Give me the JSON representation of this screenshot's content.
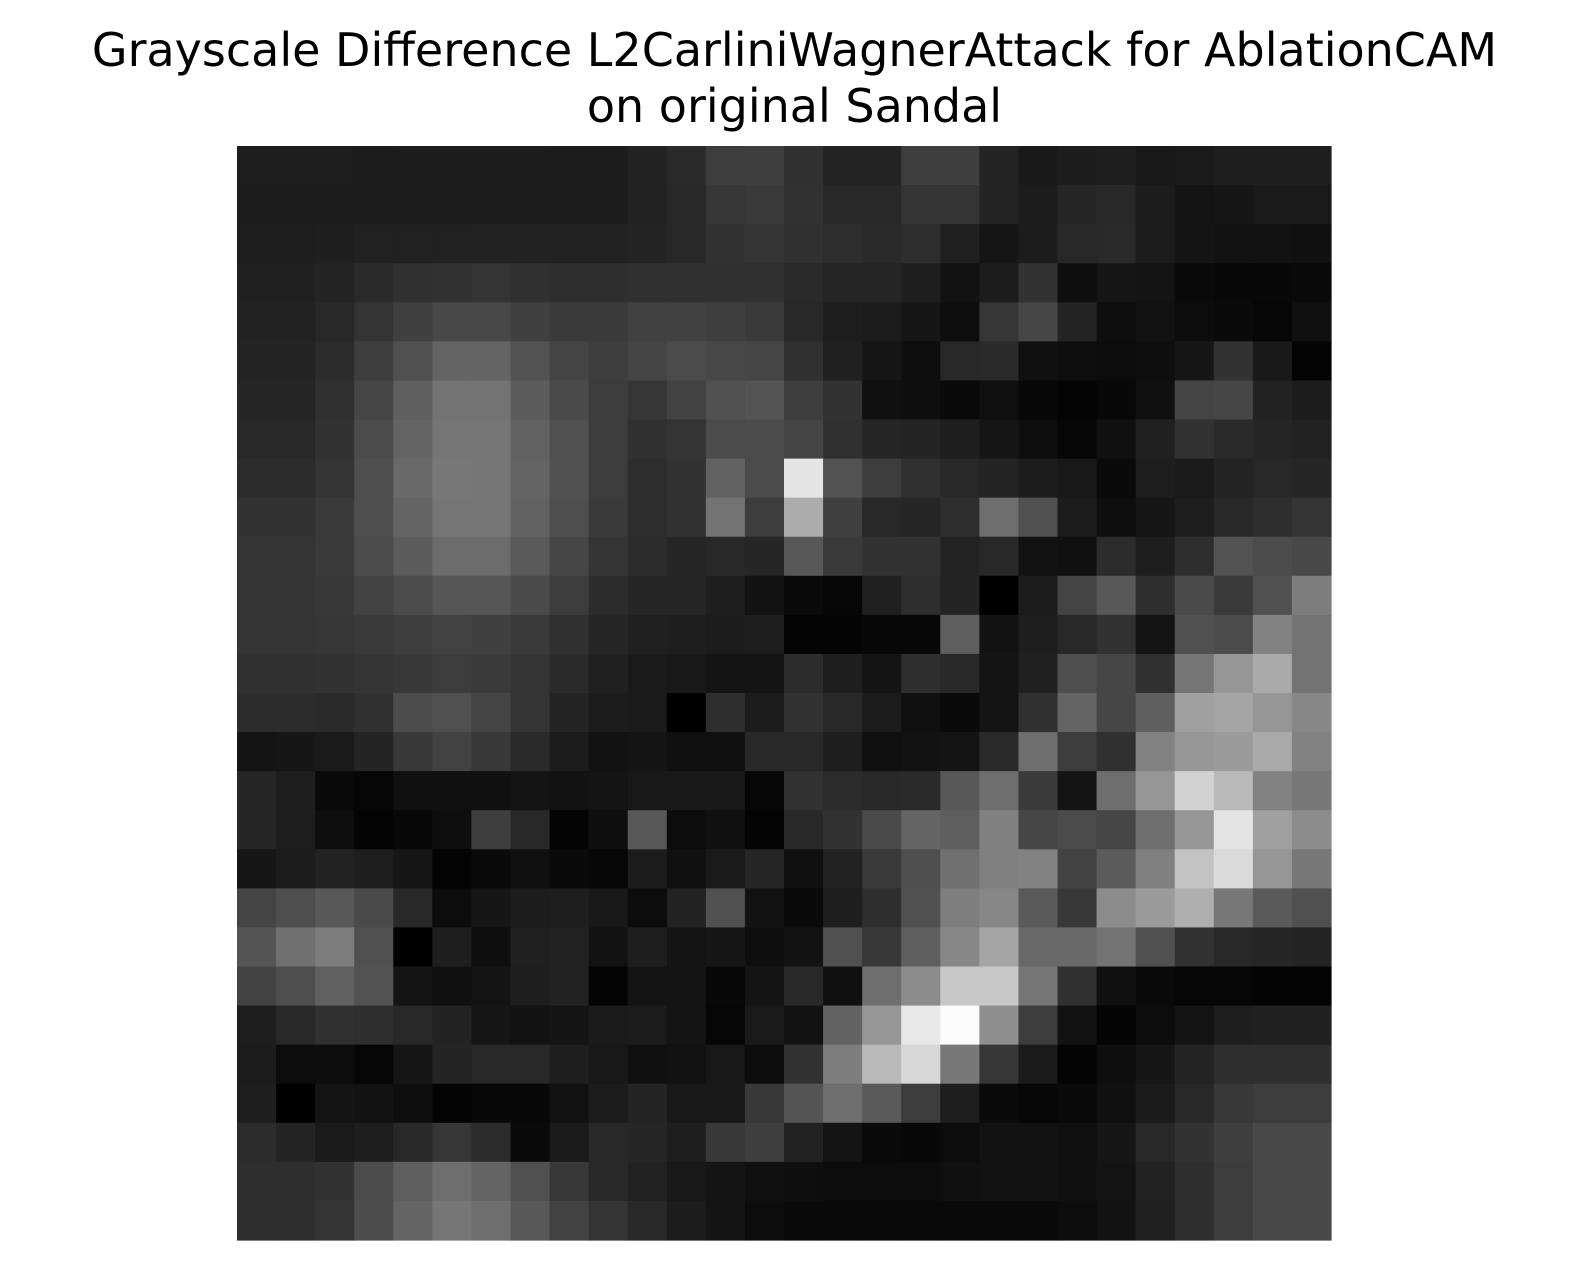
{
  "chart_data": {
    "type": "heatmap",
    "title_lines": [
      "Grayscale Difference L2CarliniWagnerAttack for AblationCAM",
      "on original Sandal"
    ],
    "colormap": "gray",
    "axes_visible": false,
    "rows": 28,
    "cols": 28,
    "values": [
      [
        30,
        30,
        30,
        29,
        28,
        28,
        28,
        28,
        29,
        29,
        34,
        42,
        60,
        62,
        48,
        35,
        35,
        62,
        62,
        36,
        25,
        28,
        30,
        24,
        26,
        30,
        30,
        30
      ],
      [
        29,
        29,
        29,
        29,
        28,
        28,
        28,
        28,
        29,
        29,
        34,
        40,
        55,
        58,
        50,
        40,
        40,
        52,
        52,
        36,
        28,
        38,
        40,
        28,
        20,
        22,
        26,
        26
      ],
      [
        30,
        30,
        31,
        33,
        33,
        33,
        34,
        34,
        34,
        34,
        36,
        40,
        50,
        52,
        48,
        45,
        42,
        45,
        32,
        22,
        28,
        40,
        42,
        28,
        20,
        18,
        18,
        16
      ],
      [
        32,
        32,
        36,
        42,
        48,
        50,
        52,
        48,
        46,
        46,
        48,
        48,
        48,
        48,
        42,
        38,
        38,
        30,
        18,
        28,
        50,
        14,
        22,
        20,
        10,
        8,
        8,
        10
      ],
      [
        34,
        34,
        40,
        52,
        64,
        72,
        72,
        64,
        58,
        58,
        65,
        65,
        62,
        58,
        40,
        30,
        28,
        22,
        14,
        54,
        70,
        36,
        14,
        18,
        12,
        10,
        6,
        16
      ],
      [
        36,
        36,
        44,
        62,
        80,
        100,
        100,
        82,
        68,
        62,
        68,
        75,
        72,
        70,
        48,
        32,
        22,
        14,
        40,
        42,
        16,
        14,
        12,
        14,
        22,
        50,
        25,
        4
      ],
      [
        38,
        38,
        48,
        70,
        95,
        115,
        115,
        92,
        74,
        60,
        54,
        66,
        80,
        84,
        62,
        50,
        16,
        14,
        10,
        16,
        8,
        4,
        8,
        16,
        68,
        70,
        34,
        28
      ],
      [
        40,
        40,
        50,
        75,
        100,
        118,
        118,
        98,
        80,
        60,
        48,
        52,
        75,
        75,
        68,
        48,
        38,
        36,
        30,
        22,
        14,
        6,
        16,
        32,
        50,
        42,
        38,
        34
      ],
      [
        44,
        44,
        52,
        78,
        105,
        120,
        118,
        100,
        80,
        60,
        45,
        50,
        98,
        75,
        228,
        82,
        60,
        48,
        40,
        36,
        28,
        24,
        10,
        30,
        26,
        36,
        40,
        38
      ],
      [
        50,
        50,
        58,
        78,
        100,
        118,
        118,
        98,
        78,
        58,
        45,
        50,
        115,
        60,
        172,
        64,
        40,
        38,
        46,
        110,
        80,
        28,
        14,
        22,
        30,
        40,
        46,
        52
      ],
      [
        52,
        52,
        58,
        76,
        92,
        108,
        108,
        90,
        70,
        52,
        44,
        38,
        40,
        38,
        88,
        58,
        50,
        50,
        35,
        40,
        18,
        16,
        44,
        30,
        46,
        82,
        76,
        72
      ],
      [
        52,
        52,
        56,
        66,
        76,
        86,
        86,
        74,
        60,
        44,
        38,
        38,
        30,
        18,
        10,
        6,
        32,
        46,
        36,
        0,
        28,
        68,
        88,
        46,
        74,
        58,
        80,
        125
      ],
      [
        52,
        52,
        54,
        58,
        62,
        66,
        64,
        58,
        48,
        38,
        32,
        30,
        28,
        30,
        4,
        4,
        8,
        8,
        94,
        18,
        30,
        40,
        50,
        20,
        80,
        75,
        130,
        115
      ],
      [
        48,
        48,
        50,
        52,
        56,
        60,
        58,
        52,
        42,
        32,
        26,
        24,
        20,
        20,
        44,
        30,
        20,
        46,
        40,
        20,
        32,
        78,
        70,
        48,
        118,
        150,
        170,
        115
      ],
      [
        44,
        44,
        42,
        48,
        76,
        80,
        68,
        52,
        36,
        28,
        26,
        0,
        46,
        28,
        50,
        40,
        28,
        16,
        10,
        20,
        48,
        100,
        70,
        95,
        160,
        165,
        150,
        135
      ],
      [
        20,
        22,
        26,
        36,
        56,
        66,
        56,
        42,
        28,
        18,
        20,
        16,
        16,
        40,
        40,
        30,
        16,
        18,
        20,
        42,
        110,
        60,
        48,
        130,
        150,
        155,
        170,
        130
      ],
      [
        38,
        30,
        10,
        6,
        16,
        16,
        16,
        20,
        18,
        20,
        24,
        24,
        24,
        6,
        50,
        44,
        40,
        42,
        88,
        110,
        58,
        20,
        110,
        150,
        210,
        185,
        130,
        120
      ],
      [
        38,
        30,
        14,
        4,
        8,
        14,
        62,
        40,
        4,
        14,
        88,
        12,
        16,
        4,
        40,
        50,
        74,
        100,
        94,
        128,
        70,
        75,
        70,
        110,
        150,
        228,
        160,
        140
      ],
      [
        22,
        28,
        34,
        30,
        22,
        4,
        10,
        16,
        10,
        6,
        28,
        16,
        26,
        38,
        16,
        34,
        58,
        78,
        112,
        128,
        130,
        66,
        92,
        128,
        195,
        218,
        150,
        120
      ],
      [
        68,
        78,
        88,
        74,
        40,
        12,
        22,
        28,
        30,
        24,
        12,
        34,
        80,
        18,
        10,
        30,
        46,
        80,
        126,
        135,
        90,
        56,
        140,
        155,
        175,
        120,
        90,
        80
      ],
      [
        85,
        112,
        125,
        80,
        0,
        30,
        14,
        32,
        34,
        18,
        30,
        20,
        22,
        14,
        18,
        80,
        56,
        95,
        135,
        165,
        105,
        105,
        115,
        80,
        50,
        40,
        38,
        36
      ],
      [
        66,
        78,
        96,
        82,
        20,
        16,
        20,
        30,
        34,
        4,
        20,
        20,
        8,
        20,
        40,
        16,
        110,
        140,
        200,
        200,
        118,
        48,
        16,
        10,
        6,
        6,
        4,
        4
      ],
      [
        30,
        40,
        48,
        46,
        40,
        34,
        22,
        18,
        20,
        26,
        28,
        20,
        6,
        26,
        18,
        98,
        150,
        232,
        252,
        142,
        60,
        18,
        4,
        12,
        20,
        30,
        32,
        32
      ],
      [
        28,
        12,
        12,
        6,
        22,
        36,
        40,
        40,
        30,
        24,
        16,
        18,
        24,
        12,
        50,
        125,
        185,
        215,
        120,
        54,
        26,
        4,
        14,
        22,
        36,
        46,
        46,
        46
      ],
      [
        30,
        0,
        20,
        18,
        14,
        4,
        8,
        8,
        18,
        28,
        36,
        24,
        24,
        56,
        84,
        110,
        90,
        60,
        30,
        10,
        6,
        10,
        16,
        26,
        40,
        56,
        60,
        60
      ],
      [
        44,
        36,
        26,
        30,
        40,
        54,
        44,
        10,
        26,
        40,
        38,
        30,
        56,
        62,
        34,
        20,
        10,
        8,
        12,
        18,
        18,
        16,
        22,
        40,
        50,
        62,
        72,
        72
      ],
      [
        46,
        46,
        50,
        75,
        95,
        110,
        100,
        80,
        56,
        40,
        34,
        24,
        20,
        16,
        14,
        12,
        12,
        12,
        16,
        18,
        18,
        16,
        20,
        34,
        46,
        60,
        72,
        72
      ],
      [
        46,
        46,
        52,
        76,
        100,
        118,
        110,
        88,
        66,
        52,
        40,
        28,
        20,
        12,
        10,
        10,
        10,
        10,
        10,
        10,
        10,
        12,
        18,
        32,
        46,
        60,
        72,
        72
      ]
    ]
  }
}
